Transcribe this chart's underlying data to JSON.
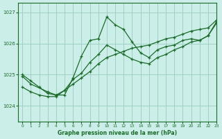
{
  "xlabel": "Graphe pression niveau de la mer (hPa)",
  "bg_color": "#cceee8",
  "grid_color": "#99ccbb",
  "line_color": "#1a6b2a",
  "xlim": [
    -0.5,
    23
  ],
  "ylim": [
    1023.5,
    1027.3
  ],
  "yticks": [
    1024,
    1025,
    1026,
    1027
  ],
  "xticks": [
    0,
    1,
    2,
    3,
    4,
    5,
    6,
    7,
    8,
    9,
    10,
    11,
    12,
    13,
    14,
    15,
    16,
    17,
    18,
    19,
    20,
    21,
    22,
    23
  ],
  "series1_x": [
    0,
    1,
    2,
    3,
    4,
    5,
    6,
    7,
    8,
    9,
    10,
    11,
    12,
    13,
    14,
    15,
    16,
    17,
    18,
    19,
    20,
    21,
    22,
    23
  ],
  "series1_y": [
    1025.0,
    1024.8,
    1024.6,
    1024.4,
    1024.35,
    1024.35,
    1024.9,
    1025.6,
    1026.1,
    1026.15,
    1026.85,
    1026.6,
    1026.45,
    1026.05,
    1025.7,
    1025.55,
    1025.8,
    1025.9,
    1025.95,
    1026.1,
    1026.15,
    1026.1,
    1026.25,
    1026.7
  ],
  "series2_x": [
    0,
    1,
    3,
    4,
    5,
    6,
    7,
    8,
    9,
    10,
    11,
    12,
    13,
    14,
    15,
    16,
    17,
    18,
    19,
    20,
    21,
    22,
    23
  ],
  "series2_y": [
    1024.95,
    1024.7,
    1024.45,
    1024.35,
    1024.5,
    1024.85,
    1025.05,
    1025.4,
    1025.65,
    1025.95,
    1025.8,
    1025.65,
    1025.5,
    1025.4,
    1025.35,
    1025.55,
    1025.65,
    1025.8,
    1025.9,
    1026.05,
    1026.1,
    1026.25,
    1026.65
  ],
  "series3_x": [
    0,
    1,
    2,
    3,
    4,
    5,
    6,
    7,
    8,
    9,
    10,
    11,
    12,
    13,
    14,
    15,
    16,
    17,
    18,
    19,
    20,
    21,
    22,
    23
  ],
  "series3_y": [
    1024.6,
    1024.45,
    1024.35,
    1024.3,
    1024.3,
    1024.5,
    1024.7,
    1024.9,
    1025.1,
    1025.35,
    1025.55,
    1025.65,
    1025.75,
    1025.85,
    1025.9,
    1025.95,
    1026.05,
    1026.15,
    1026.2,
    1026.3,
    1026.4,
    1026.45,
    1026.5,
    1026.75
  ]
}
